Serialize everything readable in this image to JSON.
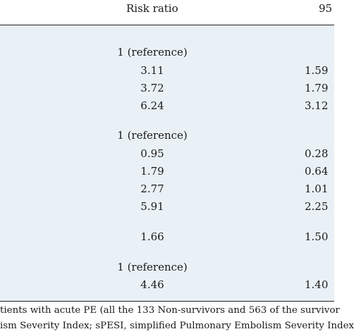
{
  "header": {
    "risk_ratio": "Risk ratio",
    "ci_fragment": "95"
  },
  "rows": [
    {
      "rr": "1 (reference)",
      "ci": ""
    },
    {
      "rr": "3.11",
      "ci": "1.59"
    },
    {
      "rr": "3.72",
      "ci": "1.79"
    },
    {
      "rr": "6.24",
      "ci": "3.12"
    },
    {
      "rr": "1 (reference)",
      "ci": ""
    },
    {
      "rr": "0.95",
      "ci": "0.28"
    },
    {
      "rr": "1.79",
      "ci": "0.64"
    },
    {
      "rr": "2.77",
      "ci": "1.01"
    },
    {
      "rr": "5.91",
      "ci": "2.25"
    },
    {
      "rr": "1.66",
      "ci": "1.50"
    },
    {
      "rr": "1 (reference)",
      "ci": ""
    },
    {
      "rr": "4.46",
      "ci": "1.40"
    }
  ],
  "footnote": {
    "line1": "tients with acute PE (all the 133 Non-survivors and 563 of the survivor",
    "line2": "ism Severity Index; sPESI, simplified Pulmonary Embolism Severity Index"
  }
}
